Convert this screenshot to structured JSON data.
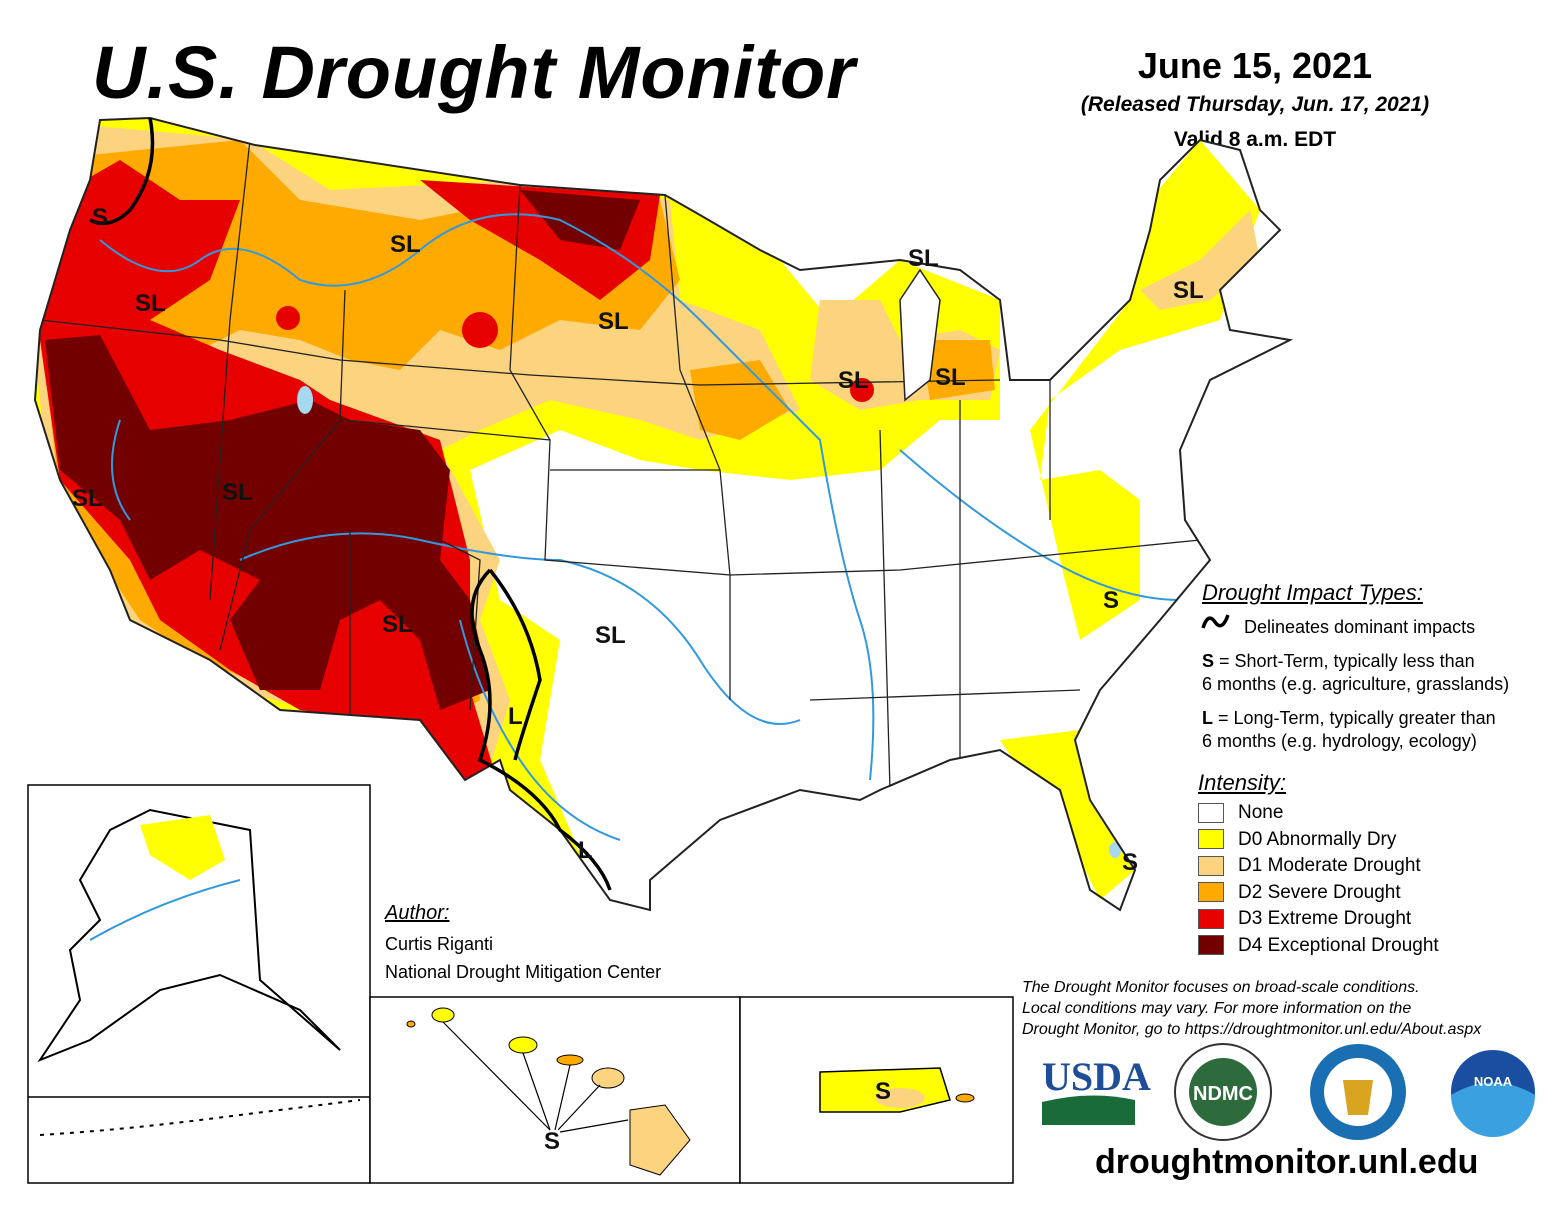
{
  "header": {
    "title": "U.S. Drought Monitor",
    "date": "June 15, 2021",
    "released": "(Released Thursday, Jun. 17, 2021)",
    "valid": "Valid 8 a.m. EDT"
  },
  "impact_legend": {
    "heading": "Drought Impact Types:",
    "line_label": "Delineates dominant impacts",
    "s_key": "S",
    "s_text": " = Short-Term, typically less than",
    "s_text2": "6 months (e.g. agriculture, grasslands)",
    "l_key": "L",
    "l_text": " = Long-Term, typically greater than",
    "l_text2": "6 months (e.g. hydrology, ecology)"
  },
  "intensity_legend": {
    "heading": "Intensity:",
    "items": [
      {
        "label": "None",
        "color": "#ffffff"
      },
      {
        "label": "D0 Abnormally Dry",
        "color": "#ffff00"
      },
      {
        "label": "D1 Moderate Drought",
        "color": "#fcd37f"
      },
      {
        "label": "D2 Severe Drought",
        "color": "#ffaa00"
      },
      {
        "label": "D3 Extreme Drought",
        "color": "#e60000"
      },
      {
        "label": "D4 Exceptional Drought",
        "color": "#730000"
      }
    ]
  },
  "author": {
    "heading": "Author:",
    "name": "Curtis Riganti",
    "org": "National Drought Mitigation Center"
  },
  "disclaimer": [
    "The Drought Monitor focuses on broad-scale conditions.",
    "Local conditions may vary. For more information on the",
    "Drought Monitor, go to https://droughtmonitor.unl.edu/About.aspx"
  ],
  "logos": [
    "USDA",
    "NDMC",
    "NOAA"
  ],
  "website": "droughtmonitor.unl.edu",
  "map_labels": {
    "sl": "SL",
    "s": "S",
    "l": "L"
  },
  "colors": {
    "river": "#3399dd",
    "water": "#a6d8f0"
  }
}
